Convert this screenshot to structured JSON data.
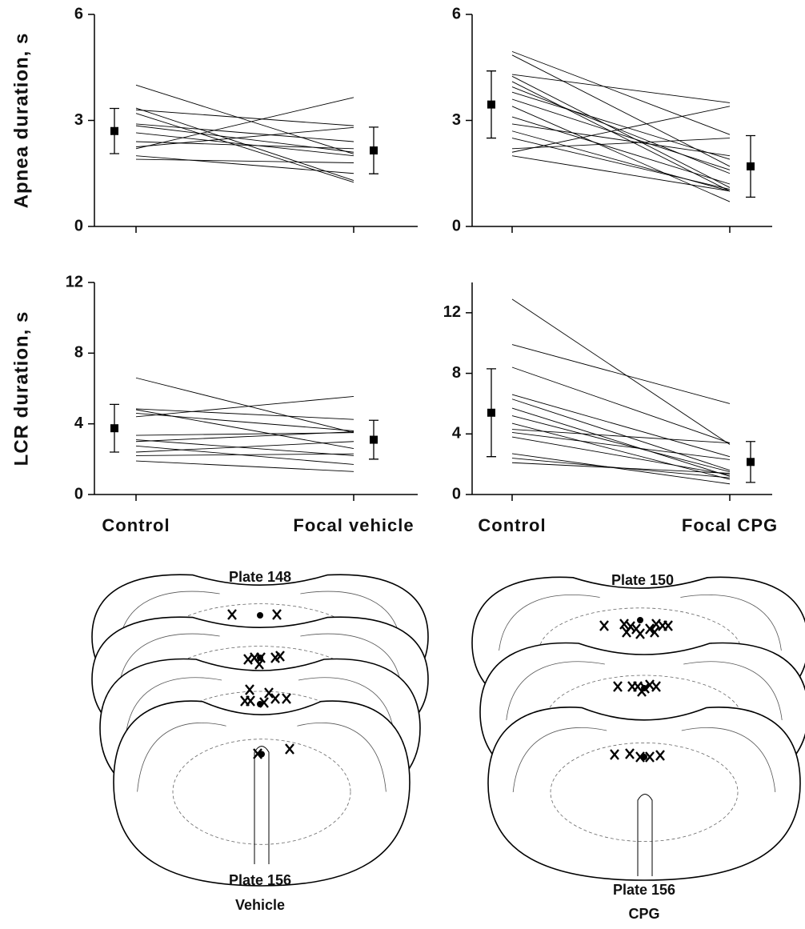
{
  "chart_data": [
    {
      "type": "line",
      "ylabel": "Apnea duration, s",
      "ylim": [
        0,
        6
      ],
      "yticks": [
        0,
        3,
        6
      ],
      "color": "#000000",
      "series": [
        {
          "values": [
            4.0,
            2.05
          ]
        },
        {
          "values": [
            3.35,
            1.3
          ]
        },
        {
          "values": [
            3.3,
            2.85
          ]
        },
        {
          "values": [
            3.2,
            1.25
          ]
        },
        {
          "values": [
            2.9,
            2.4
          ]
        },
        {
          "values": [
            2.85,
            2.1
          ]
        },
        {
          "values": [
            2.65,
            2.0
          ]
        },
        {
          "values": [
            2.4,
            2.2
          ]
        },
        {
          "values": [
            2.25,
            2.8
          ]
        },
        {
          "values": [
            2.2,
            3.65
          ]
        },
        {
          "values": [
            2.0,
            1.5
          ]
        },
        {
          "values": [
            1.9,
            1.8
          ]
        }
      ],
      "mean": [
        2.7,
        2.15
      ],
      "sd": [
        0.64,
        0.66
      ]
    },
    {
      "type": "line",
      "ylim": [
        0,
        6
      ],
      "yticks": [
        0,
        3,
        6
      ],
      "color": "#000000",
      "series": [
        {
          "values": [
            4.95,
            2.6
          ]
        },
        {
          "values": [
            4.85,
            1.7
          ]
        },
        {
          "values": [
            4.3,
            3.5
          ]
        },
        {
          "values": [
            4.25,
            1.1
          ]
        },
        {
          "values": [
            4.1,
            1.0
          ]
        },
        {
          "values": [
            3.95,
            1.5
          ]
        },
        {
          "values": [
            3.8,
            1.9
          ]
        },
        {
          "values": [
            3.6,
            1.6
          ]
        },
        {
          "values": [
            3.4,
            0.7
          ]
        },
        {
          "values": [
            3.1,
            1.2
          ]
        },
        {
          "values": [
            2.9,
            2.0
          ]
        },
        {
          "values": [
            2.7,
            1.0
          ]
        },
        {
          "values": [
            2.5,
            1.05
          ]
        },
        {
          "values": [
            2.2,
            2.5
          ]
        },
        {
          "values": [
            2.1,
            3.4
          ]
        },
        {
          "values": [
            2.0,
            1.0
          ]
        }
      ],
      "mean": [
        3.45,
        1.7
      ],
      "sd": [
        0.95,
        0.87
      ]
    },
    {
      "type": "line",
      "ylabel": "LCR duration, s",
      "ylim": [
        0,
        12
      ],
      "yticks": [
        0,
        4,
        8,
        12
      ],
      "color": "#000000",
      "categories": [
        "Control",
        "Focal vehicle"
      ],
      "series": [
        {
          "values": [
            6.6,
            3.5
          ]
        },
        {
          "values": [
            4.85,
            4.25
          ]
        },
        {
          "values": [
            4.8,
            2.6
          ]
        },
        {
          "values": [
            4.6,
            3.6
          ]
        },
        {
          "values": [
            4.4,
            5.55
          ]
        },
        {
          "values": [
            3.35,
            3.5
          ]
        },
        {
          "values": [
            3.1,
            2.2
          ]
        },
        {
          "values": [
            3.0,
            3.55
          ]
        },
        {
          "values": [
            2.75,
            1.7
          ]
        },
        {
          "values": [
            2.4,
            3.0
          ]
        },
        {
          "values": [
            2.2,
            2.3
          ]
        },
        {
          "values": [
            1.9,
            1.3
          ]
        }
      ],
      "mean": [
        3.75,
        3.1
      ],
      "sd": [
        1.35,
        1.1
      ]
    },
    {
      "type": "line",
      "ylim": [
        0,
        14
      ],
      "yticks": [
        0,
        4,
        8,
        12
      ],
      "color": "#000000",
      "categories": [
        "Control",
        "Focal CPG"
      ],
      "series": [
        {
          "values": [
            12.9,
            3.3
          ]
        },
        {
          "values": [
            9.9,
            6.0
          ]
        },
        {
          "values": [
            8.4,
            3.4
          ]
        },
        {
          "values": [
            6.6,
            2.5
          ]
        },
        {
          "values": [
            6.3,
            1.6
          ]
        },
        {
          "values": [
            5.7,
            1.2
          ]
        },
        {
          "values": [
            5.2,
            1.5
          ]
        },
        {
          "values": [
            4.7,
            1.0
          ]
        },
        {
          "values": [
            4.3,
            3.4
          ]
        },
        {
          "values": [
            4.1,
            2.3
          ]
        },
        {
          "values": [
            3.8,
            1.3
          ]
        },
        {
          "values": [
            2.7,
            0.7
          ]
        },
        {
          "values": [
            2.4,
            1.1
          ]
        },
        {
          "values": [
            2.1,
            1.4
          ]
        }
      ],
      "mean": [
        5.4,
        2.15
      ],
      "sd": [
        2.9,
        1.35
      ]
    }
  ],
  "sections": [
    {
      "plates": [
        "Plate 148",
        "Plate 156"
      ],
      "group": "Vehicle"
    },
    {
      "plates": [
        "Plate 150",
        "Plate 156"
      ],
      "group": "CPG"
    }
  ]
}
